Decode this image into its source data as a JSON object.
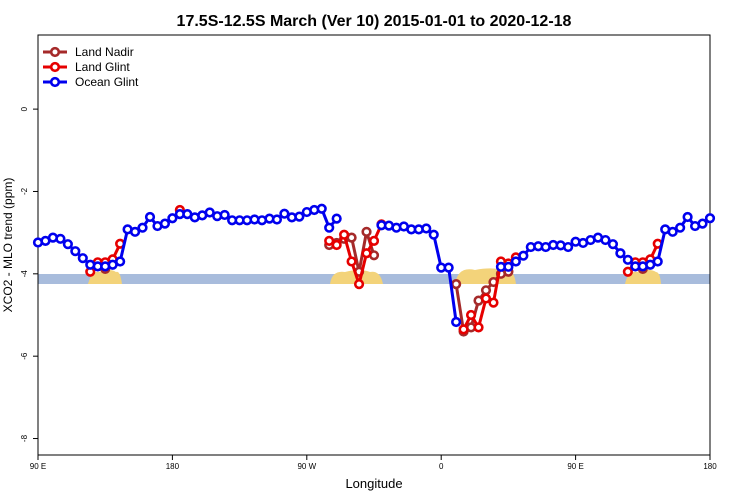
{
  "chart_data": {
    "type": "line",
    "title": "17.5S-12.5S March (Ver 10)   2015-01-01 to 2020-12-18",
    "xlabel": "Longitude",
    "ylabel": "XCO2 - MLO trend (ppm)",
    "x": [
      90,
      95,
      100,
      105,
      110,
      115,
      120,
      125,
      130,
      135,
      140,
      145,
      150,
      155,
      160,
      165,
      170,
      175,
      180,
      185,
      190,
      195,
      200,
      205,
      210,
      215,
      220,
      225,
      230,
      235,
      240,
      245,
      250,
      255,
      260,
      265,
      270,
      275,
      280,
      285,
      290,
      295,
      300,
      305,
      310,
      315,
      320,
      325,
      330,
      335,
      340,
      345,
      350,
      355,
      360,
      365,
      370,
      375,
      380,
      385,
      390,
      395,
      400,
      405,
      410,
      415,
      420,
      425,
      430,
      435,
      440,
      445,
      450,
      455,
      460,
      465,
      470,
      475,
      480,
      485,
      490,
      495,
      500,
      505,
      510,
      515,
      520,
      525,
      530,
      535,
      540
    ],
    "series": [
      {
        "name": "Land Nadir",
        "color": "#a52a2a",
        "values": [
          null,
          null,
          null,
          null,
          null,
          null,
          null,
          null,
          -3.8,
          -3.88,
          -3.75,
          null,
          null,
          null,
          null,
          null,
          null,
          null,
          null,
          null,
          null,
          null,
          null,
          null,
          null,
          null,
          null,
          null,
          null,
          null,
          null,
          null,
          null,
          null,
          null,
          null,
          null,
          null,
          null,
          -3.3,
          -3.25,
          -3.15,
          -3.12,
          -3.95,
          -2.98,
          -3.55,
          null,
          null,
          null,
          null,
          null,
          null,
          null,
          null,
          null,
          null,
          -4.25,
          -5.4,
          -5.3,
          -4.65,
          -4.4,
          -4.2,
          -4.0,
          -3.95,
          null,
          null,
          null,
          null,
          null,
          null,
          null,
          null,
          null,
          null,
          null,
          null,
          null,
          null,
          null,
          null,
          -3.8,
          -3.88,
          -3.75,
          null,
          null,
          null,
          null,
          null,
          null,
          null,
          null
        ]
      },
      {
        "name": "Land Glint",
        "color": "#e60000",
        "values": [
          null,
          null,
          null,
          null,
          null,
          null,
          null,
          -3.95,
          -3.72,
          -3.72,
          -3.65,
          -3.27,
          null,
          null,
          null,
          null,
          null,
          null,
          null,
          -2.45,
          null,
          null,
          null,
          null,
          null,
          null,
          null,
          null,
          null,
          null,
          null,
          null,
          null,
          null,
          null,
          null,
          null,
          null,
          null,
          -3.2,
          -3.3,
          -3.05,
          -3.7,
          -4.25,
          -3.5,
          -3.2,
          -2.8,
          null,
          null,
          null,
          null,
          null,
          null,
          null,
          null,
          null,
          null,
          -5.35,
          -5.0,
          -5.3,
          -4.6,
          -4.7,
          -3.7,
          -3.75,
          -3.6,
          null,
          null,
          null,
          null,
          null,
          null,
          null,
          null,
          null,
          null,
          null,
          null,
          null,
          null,
          -3.95,
          -3.72,
          -3.72,
          -3.65,
          -3.27,
          null,
          null,
          null,
          null,
          null,
          null,
          null
        ]
      },
      {
        "name": "Ocean Glint",
        "color": "#0000ee",
        "values": [
          -3.24,
          -3.2,
          -3.12,
          -3.15,
          -3.28,
          -3.45,
          -3.62,
          -3.78,
          -3.82,
          -3.82,
          -3.78,
          -3.7,
          -2.92,
          -2.98,
          -2.88,
          -2.62,
          -2.84,
          -2.78,
          -2.65,
          -2.55,
          -2.55,
          -2.63,
          -2.58,
          -2.51,
          -2.6,
          -2.57,
          -2.7,
          -2.7,
          -2.7,
          -2.68,
          -2.7,
          -2.66,
          -2.68,
          -2.54,
          -2.63,
          -2.61,
          -2.5,
          -2.45,
          -2.42,
          -2.88,
          -2.66,
          null,
          null,
          null,
          null,
          null,
          -2.82,
          -2.83,
          -2.88,
          -2.85,
          -2.92,
          -2.92,
          -2.9,
          -3.05,
          -3.85,
          -3.85,
          -5.17,
          null,
          null,
          null,
          null,
          null,
          -3.83,
          -3.83,
          -3.7,
          -3.56,
          -3.35,
          -3.33,
          -3.35,
          -3.3,
          -3.31,
          -3.35,
          -3.22,
          -3.25,
          -3.18,
          -3.12,
          -3.18,
          -3.28,
          -3.5,
          -3.66,
          -3.82,
          -3.82,
          -3.78,
          -3.7,
          -2.92,
          -2.98,
          -2.88,
          -2.62,
          -2.84,
          -2.78,
          -2.65
        ]
      }
    ],
    "xlim": [
      90,
      540
    ],
    "xticks": [
      {
        "value": 90,
        "label": "90 E"
      },
      {
        "value": 180,
        "label": "180"
      },
      {
        "value": 270,
        "label": "90 W"
      },
      {
        "value": 360,
        "label": "0"
      },
      {
        "value": 450,
        "label": "90 E"
      },
      {
        "value": 540,
        "label": "180"
      }
    ],
    "ylim": [
      -8.4,
      1.8
    ],
    "yticks": [
      0,
      -2,
      -4,
      -6,
      -8
    ],
    "legend": "upper left"
  }
}
